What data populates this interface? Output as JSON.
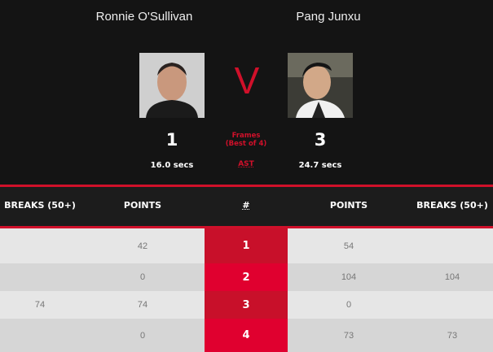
{
  "players": [
    {
      "name": "Ronnie O'Sullivan",
      "score": "1",
      "time": "16.0 secs"
    },
    {
      "name": "Pang Junxu",
      "score": "3",
      "time": "24.7 secs"
    }
  ],
  "vs": "V",
  "frames_label": "Frames",
  "best_of": "(Best of 4)",
  "ast": "AST",
  "headers": {
    "breaks_left": "BREAKS (50+)",
    "points_left": "POINTS",
    "frame": "#",
    "points_right": "POINTS",
    "breaks_right": "BREAKS (50+)"
  },
  "rows": [
    {
      "frame": "1",
      "breaks_left": "",
      "points_left": "42",
      "points_right": "54",
      "breaks_right": ""
    },
    {
      "frame": "2",
      "breaks_left": "",
      "points_left": "0",
      "points_right": "104",
      "breaks_right": "104"
    },
    {
      "frame": "3",
      "breaks_left": "74",
      "points_left": "74",
      "points_right": "0",
      "breaks_right": ""
    },
    {
      "frame": "4",
      "breaks_left": "",
      "points_left": "0",
      "points_right": "73",
      "breaks_right": "73"
    }
  ],
  "colors": {
    "accent": "#d0102a",
    "winner_cell": "#e0002f",
    "row_light": "#e6e6e6",
    "row_dark": "#d6d6d6"
  }
}
